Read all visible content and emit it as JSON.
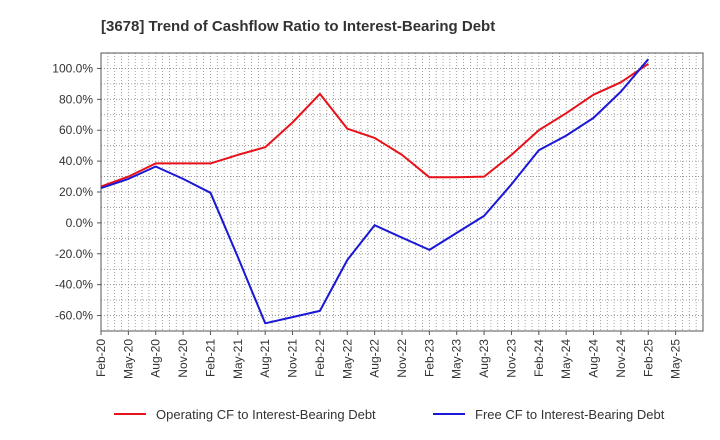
{
  "chart_data": {
    "type": "line",
    "title": "[3678]  Trend of Cashflow Ratio to Interest-Bearing Debt",
    "xlabel": "",
    "ylabel": "",
    "categories": [
      "Feb-20",
      "May-20",
      "Aug-20",
      "Nov-20",
      "Feb-21",
      "May-21",
      "Aug-21",
      "Nov-21",
      "Feb-22",
      "May-22",
      "Aug-22",
      "Nov-22",
      "Feb-23",
      "May-23",
      "Aug-23",
      "Nov-23",
      "Feb-24",
      "May-24",
      "Aug-24",
      "Nov-24",
      "Feb-25",
      "May-25"
    ],
    "y_ticks": [
      "100.0%",
      "80.0%",
      "60.0%",
      "40.0%",
      "20.0%",
      "0.0%",
      "-20.0%",
      "-40.0%",
      "-60.0%"
    ],
    "y_tick_values": [
      100,
      80,
      60,
      40,
      20,
      0,
      -20,
      -40,
      -60
    ],
    "ylim": [
      -70,
      110
    ],
    "grid": true,
    "legend_position": "bottom",
    "series": [
      {
        "name": "Operating CF to Interest-Bearing Debt",
        "color": "#e8111a",
        "x": [
          "Feb-20",
          "May-20",
          "Aug-20",
          "Nov-20",
          "Feb-21",
          "May-21",
          "Aug-21",
          "Nov-21",
          "Feb-22",
          "May-22",
          "Aug-22",
          "Nov-22",
          "Feb-23",
          "May-23",
          "Aug-23",
          "Nov-23",
          "Feb-24",
          "May-24",
          "Aug-24",
          "Nov-24",
          "Feb-25"
        ],
        "values": [
          23.5,
          30,
          38.5,
          38.5,
          38.5,
          44,
          49,
          65,
          83.5,
          61,
          55,
          44,
          29.5,
          29.5,
          30,
          44,
          60,
          71,
          83,
          91,
          103
        ]
      },
      {
        "name": "Free CF to Interest-Bearing Debt",
        "color": "#1a17d6",
        "x": [
          "Feb-20",
          "May-20",
          "Aug-20",
          "Nov-20",
          "Feb-21",
          "May-21",
          "Aug-21",
          "Nov-21",
          "Feb-22",
          "May-22",
          "Aug-22",
          "Nov-22",
          "Feb-23",
          "May-23",
          "Aug-23",
          "Nov-23",
          "Feb-24",
          "May-24",
          "Aug-24",
          "Nov-24",
          "Feb-25"
        ],
        "values": [
          22.5,
          28.5,
          36.5,
          28.5,
          19.5,
          -22,
          -65,
          -61,
          -57,
          -24,
          -1.5,
          -9.5,
          -17.5,
          -6.5,
          4.5,
          25,
          47,
          56.5,
          68,
          85,
          106
        ]
      }
    ]
  }
}
